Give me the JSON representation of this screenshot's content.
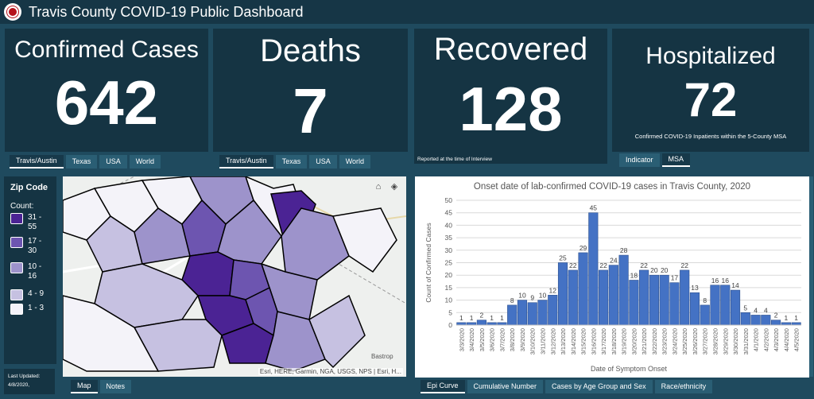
{
  "header": {
    "title": "Travis County COVID-19 Public Dashboard"
  },
  "stats": {
    "confirmed": {
      "title": "Confirmed Cases",
      "value": "642",
      "tabs": [
        "Travis/Austin",
        "Texas",
        "USA",
        "World"
      ]
    },
    "deaths": {
      "title": "Deaths",
      "value": "7",
      "tabs": [
        "Travis/Austin",
        "Texas",
        "USA",
        "World"
      ]
    },
    "recovered": {
      "title": "Recovered",
      "value": "128",
      "note": "Reported at the time of Interview"
    },
    "hospitalized": {
      "title": "Hospitalized",
      "value": "72",
      "note": "Confirmed COVID-19 Inpatients within the 5-County MSA",
      "tabs": [
        "Indicator",
        "MSA"
      ]
    }
  },
  "legend": {
    "title": "Zip Code",
    "count_label": "Count:",
    "items": [
      {
        "label": "31 - 55",
        "color": "#4b2394"
      },
      {
        "label": "17 - 30",
        "color": "#6d55b0"
      },
      {
        "label": "10 - 16",
        "color": "#9d93cb"
      },
      {
        "label": "4 - 9",
        "color": "#c6c1e1"
      },
      {
        "label": "1 - 3",
        "color": "#f4f3f9"
      }
    ]
  },
  "last_updated": {
    "label": "Last Updated:",
    "date": "4/8/2020,"
  },
  "map": {
    "credit": "Esri, HERE, Garmin, NGA, USGS, NPS | Esri, H...",
    "place_labels": [
      "Bastrop"
    ],
    "tabs": [
      "Map",
      "Notes"
    ],
    "tools": [
      "home-icon",
      "layers-icon"
    ]
  },
  "bottom_tabs": [
    "Epi Curve",
    "Cumulative Number",
    "Cases by Age Group and Sex",
    "Race/ethnicity"
  ],
  "chart_data": {
    "type": "bar",
    "title": "Onset date of lab-confirmed COVID-19 cases in Travis County, 2020",
    "xlabel": "Date of Symptom Onset",
    "ylabel": "Count of Confirmed Cases",
    "ylim": [
      0,
      50
    ],
    "yticks": [
      0,
      5,
      10,
      15,
      20,
      25,
      30,
      35,
      40,
      45,
      50
    ],
    "grid": true,
    "bar_color": "#4472c4",
    "categories": [
      "3/3/2020",
      "3/4/2020",
      "3/5/2020",
      "3/6/2020",
      "3/7/2020",
      "3/8/2020",
      "3/9/2020",
      "3/10/2020",
      "3/11/2020",
      "3/12/2020",
      "3/13/2020",
      "3/14/2020",
      "3/15/2020",
      "3/16/2020",
      "3/17/2020",
      "3/18/2020",
      "3/19/2020",
      "3/20/2020",
      "3/21/2020",
      "3/22/2020",
      "3/23/2020",
      "3/24/2020",
      "3/25/2020",
      "3/26/2020",
      "3/27/2020",
      "3/28/2020",
      "3/29/2020",
      "3/30/2020",
      "3/31/2020",
      "4/1/2020",
      "4/2/2020",
      "4/3/2020",
      "4/4/2020",
      "4/5/2020"
    ],
    "values": [
      1,
      1,
      2,
      1,
      1,
      8,
      10,
      9,
      10,
      12,
      25,
      22,
      29,
      45,
      22,
      24,
      28,
      18,
      22,
      20,
      20,
      17,
      22,
      13,
      8,
      16,
      16,
      14,
      5,
      4,
      4,
      2,
      1,
      1
    ]
  }
}
